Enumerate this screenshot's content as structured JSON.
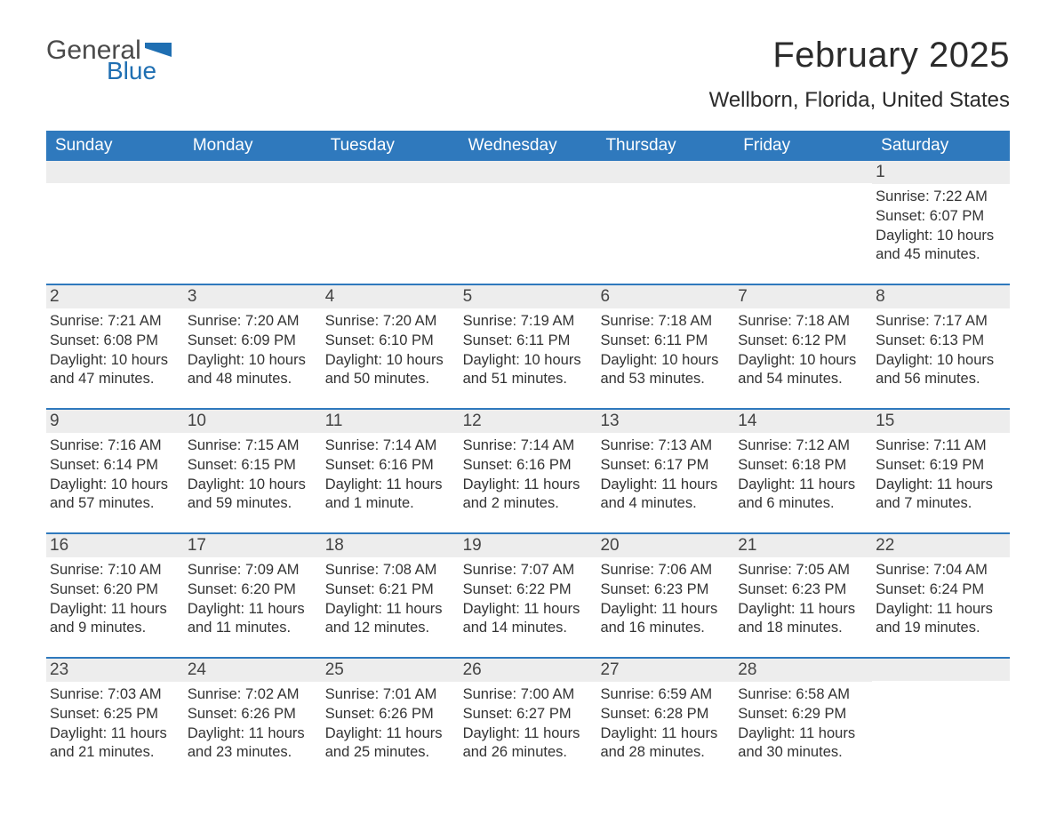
{
  "logo": {
    "general": "General",
    "blue": "Blue",
    "flag_color": "#1f6fb2"
  },
  "title": "February 2025",
  "location": "Wellborn, Florida, United States",
  "colors": {
    "header_bg": "#2f79bd",
    "header_text": "#ffffff",
    "daynum_bg": "#ededed",
    "border": "#2f79bd",
    "body_text": "#333333",
    "title_text": "#2b2b2b"
  },
  "fonts": {
    "title_size_pt": 30,
    "location_size_pt": 18,
    "weekday_size_pt": 14,
    "daynum_size_pt": 14,
    "detail_size_pt": 12
  },
  "weekdays": [
    "Sunday",
    "Monday",
    "Tuesday",
    "Wednesday",
    "Thursday",
    "Friday",
    "Saturday"
  ],
  "weeks": [
    [
      {
        "n": "",
        "sunrise": "",
        "sunset": "",
        "daylight": ""
      },
      {
        "n": "",
        "sunrise": "",
        "sunset": "",
        "daylight": ""
      },
      {
        "n": "",
        "sunrise": "",
        "sunset": "",
        "daylight": ""
      },
      {
        "n": "",
        "sunrise": "",
        "sunset": "",
        "daylight": ""
      },
      {
        "n": "",
        "sunrise": "",
        "sunset": "",
        "daylight": ""
      },
      {
        "n": "",
        "sunrise": "",
        "sunset": "",
        "daylight": ""
      },
      {
        "n": "1",
        "sunrise": "Sunrise: 7:22 AM",
        "sunset": "Sunset: 6:07 PM",
        "daylight": "Daylight: 10 hours and 45 minutes."
      }
    ],
    [
      {
        "n": "2",
        "sunrise": "Sunrise: 7:21 AM",
        "sunset": "Sunset: 6:08 PM",
        "daylight": "Daylight: 10 hours and 47 minutes."
      },
      {
        "n": "3",
        "sunrise": "Sunrise: 7:20 AM",
        "sunset": "Sunset: 6:09 PM",
        "daylight": "Daylight: 10 hours and 48 minutes."
      },
      {
        "n": "4",
        "sunrise": "Sunrise: 7:20 AM",
        "sunset": "Sunset: 6:10 PM",
        "daylight": "Daylight: 10 hours and 50 minutes."
      },
      {
        "n": "5",
        "sunrise": "Sunrise: 7:19 AM",
        "sunset": "Sunset: 6:11 PM",
        "daylight": "Daylight: 10 hours and 51 minutes."
      },
      {
        "n": "6",
        "sunrise": "Sunrise: 7:18 AM",
        "sunset": "Sunset: 6:11 PM",
        "daylight": "Daylight: 10 hours and 53 minutes."
      },
      {
        "n": "7",
        "sunrise": "Sunrise: 7:18 AM",
        "sunset": "Sunset: 6:12 PM",
        "daylight": "Daylight: 10 hours and 54 minutes."
      },
      {
        "n": "8",
        "sunrise": "Sunrise: 7:17 AM",
        "sunset": "Sunset: 6:13 PM",
        "daylight": "Daylight: 10 hours and 56 minutes."
      }
    ],
    [
      {
        "n": "9",
        "sunrise": "Sunrise: 7:16 AM",
        "sunset": "Sunset: 6:14 PM",
        "daylight": "Daylight: 10 hours and 57 minutes."
      },
      {
        "n": "10",
        "sunrise": "Sunrise: 7:15 AM",
        "sunset": "Sunset: 6:15 PM",
        "daylight": "Daylight: 10 hours and 59 minutes."
      },
      {
        "n": "11",
        "sunrise": "Sunrise: 7:14 AM",
        "sunset": "Sunset: 6:16 PM",
        "daylight": "Daylight: 11 hours and 1 minute."
      },
      {
        "n": "12",
        "sunrise": "Sunrise: 7:14 AM",
        "sunset": "Sunset: 6:16 PM",
        "daylight": "Daylight: 11 hours and 2 minutes."
      },
      {
        "n": "13",
        "sunrise": "Sunrise: 7:13 AM",
        "sunset": "Sunset: 6:17 PM",
        "daylight": "Daylight: 11 hours and 4 minutes."
      },
      {
        "n": "14",
        "sunrise": "Sunrise: 7:12 AM",
        "sunset": "Sunset: 6:18 PM",
        "daylight": "Daylight: 11 hours and 6 minutes."
      },
      {
        "n": "15",
        "sunrise": "Sunrise: 7:11 AM",
        "sunset": "Sunset: 6:19 PM",
        "daylight": "Daylight: 11 hours and 7 minutes."
      }
    ],
    [
      {
        "n": "16",
        "sunrise": "Sunrise: 7:10 AM",
        "sunset": "Sunset: 6:20 PM",
        "daylight": "Daylight: 11 hours and 9 minutes."
      },
      {
        "n": "17",
        "sunrise": "Sunrise: 7:09 AM",
        "sunset": "Sunset: 6:20 PM",
        "daylight": "Daylight: 11 hours and 11 minutes."
      },
      {
        "n": "18",
        "sunrise": "Sunrise: 7:08 AM",
        "sunset": "Sunset: 6:21 PM",
        "daylight": "Daylight: 11 hours and 12 minutes."
      },
      {
        "n": "19",
        "sunrise": "Sunrise: 7:07 AM",
        "sunset": "Sunset: 6:22 PM",
        "daylight": "Daylight: 11 hours and 14 minutes."
      },
      {
        "n": "20",
        "sunrise": "Sunrise: 7:06 AM",
        "sunset": "Sunset: 6:23 PM",
        "daylight": "Daylight: 11 hours and 16 minutes."
      },
      {
        "n": "21",
        "sunrise": "Sunrise: 7:05 AM",
        "sunset": "Sunset: 6:23 PM",
        "daylight": "Daylight: 11 hours and 18 minutes."
      },
      {
        "n": "22",
        "sunrise": "Sunrise: 7:04 AM",
        "sunset": "Sunset: 6:24 PM",
        "daylight": "Daylight: 11 hours and 19 minutes."
      }
    ],
    [
      {
        "n": "23",
        "sunrise": "Sunrise: 7:03 AM",
        "sunset": "Sunset: 6:25 PM",
        "daylight": "Daylight: 11 hours and 21 minutes."
      },
      {
        "n": "24",
        "sunrise": "Sunrise: 7:02 AM",
        "sunset": "Sunset: 6:26 PM",
        "daylight": "Daylight: 11 hours and 23 minutes."
      },
      {
        "n": "25",
        "sunrise": "Sunrise: 7:01 AM",
        "sunset": "Sunset: 6:26 PM",
        "daylight": "Daylight: 11 hours and 25 minutes."
      },
      {
        "n": "26",
        "sunrise": "Sunrise: 7:00 AM",
        "sunset": "Sunset: 6:27 PM",
        "daylight": "Daylight: 11 hours and 26 minutes."
      },
      {
        "n": "27",
        "sunrise": "Sunrise: 6:59 AM",
        "sunset": "Sunset: 6:28 PM",
        "daylight": "Daylight: 11 hours and 28 minutes."
      },
      {
        "n": "28",
        "sunrise": "Sunrise: 6:58 AM",
        "sunset": "Sunset: 6:29 PM",
        "daylight": "Daylight: 11 hours and 30 minutes."
      },
      {
        "n": "",
        "sunrise": "",
        "sunset": "",
        "daylight": ""
      }
    ]
  ]
}
